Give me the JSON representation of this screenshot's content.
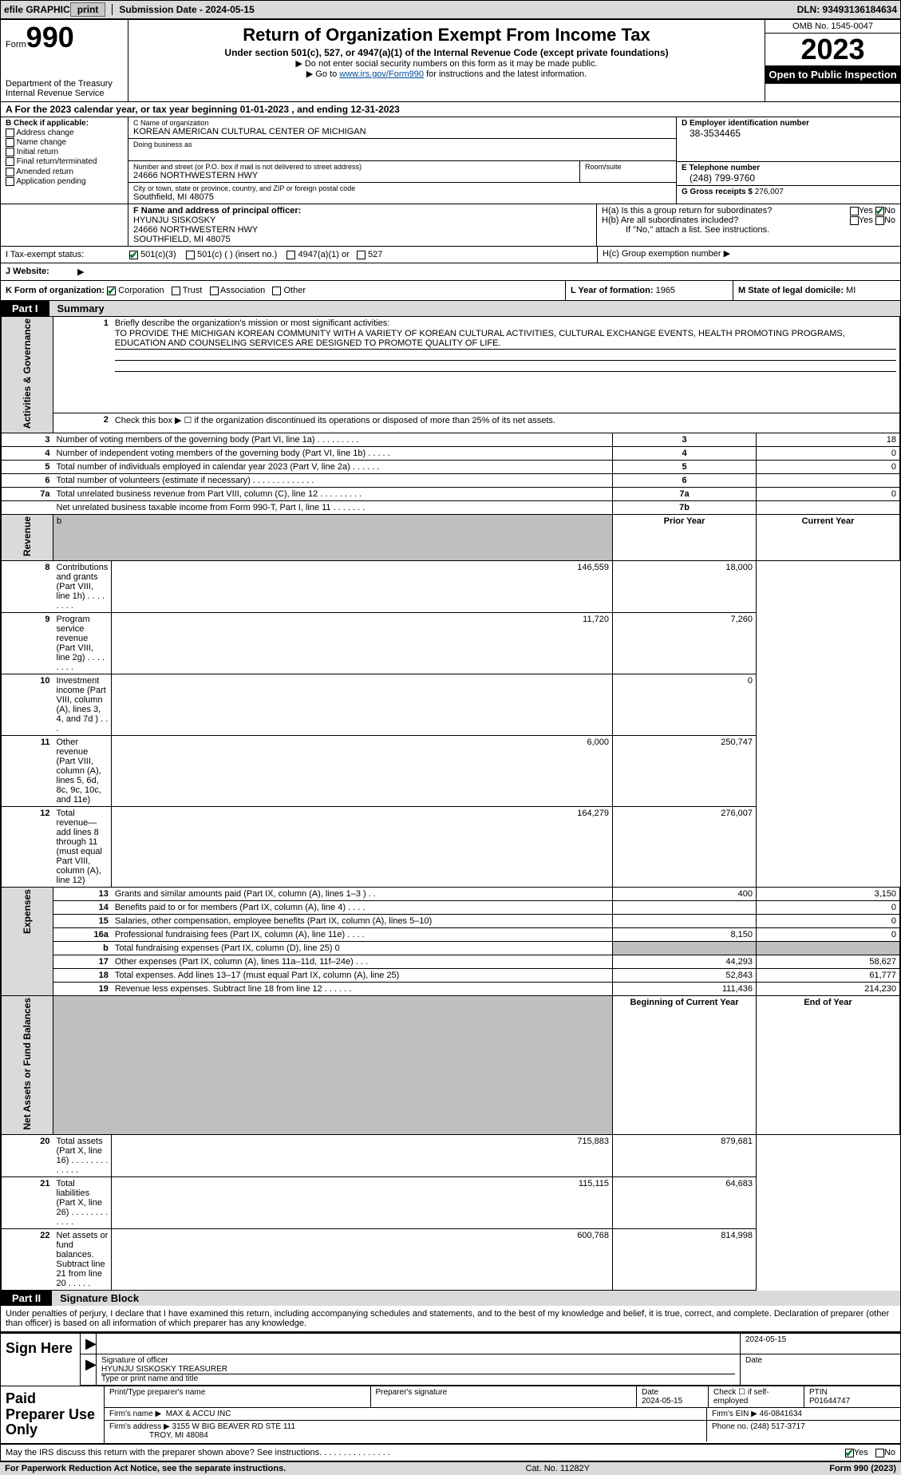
{
  "topbar": {
    "efile": "efile GRAPHIC",
    "print": "print",
    "submission": "Submission Date - 2024-05-15",
    "dln": "DLN: 93493136184634"
  },
  "header": {
    "form_prefix": "Form",
    "form_number": "990",
    "dept1": "Department of the Treasury",
    "dept2": "Internal Revenue Service",
    "title": "Return of Organization Exempt From Income Tax",
    "sub1": "Under section 501(c), 527, or 4947(a)(1) of the Internal Revenue Code (except private foundations)",
    "sub2": "Do not enter social security numbers on this form as it may be made public.",
    "sub3_pre": "Go to ",
    "sub3_link": "www.irs.gov/Form990",
    "sub3_post": " for instructions and the latest information.",
    "omb": "OMB No. 1545-0047",
    "year": "2023",
    "open": "Open to Public Inspection"
  },
  "periodA": {
    "text_pre": "A For the 2023 calendar year, or tax year beginning ",
    "begin": "01-01-2023",
    "mid": " , and ending ",
    "end": "12-31-2023"
  },
  "boxB": {
    "label": "B Check if applicable:",
    "opts": [
      "Address change",
      "Name change",
      "Initial return",
      "Final return/terminated",
      "Amended return",
      "Application pending"
    ]
  },
  "boxC": {
    "name_lbl": "C Name of organization",
    "name": "KOREAN AMERICAN CULTURAL CENTER OF MICHIGAN",
    "dba_lbl": "Doing business as",
    "dba": "",
    "street_lbl": "Number and street (or P.O. box if mail is not delivered to street address)",
    "street": "24666 NORTHWESTERN HWY",
    "room_lbl": "Room/suite",
    "room": "",
    "city_lbl": "City or town, state or province, country, and ZIP or foreign postal code",
    "city": "Southfield, MI  48075"
  },
  "boxD": {
    "ein_lbl": "D Employer identification number",
    "ein": "38-3534465",
    "tel_lbl": "E Telephone number",
    "tel": "(248) 799-9760",
    "gross_lbl": "G Gross receipts $",
    "gross": "276,007"
  },
  "boxF": {
    "lbl": "F Name and address of principal officer:",
    "name": "HYUNJU SISKOSKY",
    "street": "24666 NORTHWESTERN HWY",
    "city": "SOUTHFIELD, MI  48075"
  },
  "boxH": {
    "ha": "H(a) Is this a group return for subordinates?",
    "hb": "H(b) Are all subordinates included?",
    "hb_note": "If \"No,\" attach a list. See instructions.",
    "hc": "H(c) Group exemption number ▶",
    "yes": "Yes",
    "no": "No"
  },
  "boxI": {
    "lbl": "I     Tax-exempt status:",
    "opts": [
      "501(c)(3)",
      "501(c) (  ) (insert no.)",
      "4947(a)(1) or",
      "527"
    ]
  },
  "boxJ": {
    "lbl": "J   Website:",
    "val": "▶"
  },
  "boxK": {
    "lbl": "K Form of organization:",
    "opts": [
      "Corporation",
      "Trust",
      "Association",
      "Other"
    ]
  },
  "boxL": {
    "lbl": "L Year of formation:",
    "val": "1965"
  },
  "boxM": {
    "lbl": "M State of legal domicile:",
    "val": "MI"
  },
  "part1": {
    "tab": "Part I",
    "title": "Summary"
  },
  "vtabs": {
    "act": "Activities & Governance",
    "rev": "Revenue",
    "exp": "Expenses",
    "net": "Net Assets or Fund Balances"
  },
  "summary": {
    "line1_lbl": "Briefly describe the organization's mission or most significant activities:",
    "line1_val": "TO PROVIDE THE MICHIGAN KOREAN COMMUNITY WITH A VARIETY OF KOREAN CULTURAL ACTIVITIES, CULTURAL EXCHANGE EVENTS, HEALTH PROMOTING PROGRAMS, EDUCATION AND COUNSELING SERVICES ARE DESIGNED TO PROMOTE QUALITY OF LIFE.",
    "line2": "Check this box ▶ ☐ if the organization discontinued its operations or disposed of more than 25% of its net assets.",
    "rows_act": [
      {
        "n": "3",
        "t": "Number of voting members of the governing body (Part VI, line 1a)   .   .   .   .   .   .   .   .   .",
        "rn": "3",
        "v": "18"
      },
      {
        "n": "4",
        "t": "Number of independent voting members of the governing body (Part VI, line 1b)   .   .   .   .   .",
        "rn": "4",
        "v": "0"
      },
      {
        "n": "5",
        "t": "Total number of individuals employed in calendar year 2023 (Part V, line 2a)   .   .   .   .   .   .",
        "rn": "5",
        "v": "0"
      },
      {
        "n": "6",
        "t": "Total number of volunteers (estimate if necessary)   .   .   .   .   .   .   .   .   .   .   .   .   .",
        "rn": "6",
        "v": ""
      },
      {
        "n": "7a",
        "t": "Total unrelated business revenue from Part VIII, column (C), line 12  .   .   .   .   .   .   .   .   .",
        "rn": "7a",
        "v": "0"
      },
      {
        "n": "",
        "t": "Net unrelated business taxable income from Form 990-T, Part I, line 11   .   .   .   .   .   .   .",
        "rn": "7b",
        "v": ""
      }
    ],
    "hdr_prior": "Prior Year",
    "hdr_curr": "Current Year",
    "rows_rev": [
      {
        "n": "8",
        "t": "Contributions and grants (Part VIII, line 1h)   .   .   .   .   .   .   .   .",
        "p": "146,559",
        "c": "18,000"
      },
      {
        "n": "9",
        "t": "Program service revenue (Part VIII, line 2g)   .   .   .   .   .   .   .   .",
        "p": "11,720",
        "c": "7,260"
      },
      {
        "n": "10",
        "t": "Investment income (Part VIII, column (A), lines 3, 4, and 7d )   .   .   .",
        "p": "",
        "c": "0"
      },
      {
        "n": "11",
        "t": "Other revenue (Part VIII, column (A), lines 5, 6d, 8c, 9c, 10c, and 11e)",
        "p": "6,000",
        "c": "250,747"
      },
      {
        "n": "12",
        "t": "Total revenue—add lines 8 through 11 (must equal Part VIII, column (A), line 12)",
        "p": "164,279",
        "c": "276,007"
      }
    ],
    "rows_exp": [
      {
        "n": "13",
        "t": "Grants and similar amounts paid (Part IX, column (A), lines 1–3 )   .   .",
        "p": "400",
        "c": "3,150"
      },
      {
        "n": "14",
        "t": "Benefits paid to or for members (Part IX, column (A), line 4)  .   .   .   .",
        "p": "",
        "c": "0"
      },
      {
        "n": "15",
        "t": "Salaries, other compensation, employee benefits (Part IX, column (A), lines 5–10)",
        "p": "",
        "c": "0"
      },
      {
        "n": "16a",
        "t": "Professional fundraising fees (Part IX, column (A), line 11e)  .   .   .   .",
        "p": "8,150",
        "c": "0"
      },
      {
        "n": "b",
        "t": "Total fundraising expenses (Part IX, column (D), line 25) 0",
        "p": "__shade__",
        "c": "__shade__"
      },
      {
        "n": "17",
        "t": "Other expenses (Part IX, column (A), lines 11a–11d, 11f–24e)   .   .   .",
        "p": "44,293",
        "c": "58,627"
      },
      {
        "n": "18",
        "t": "Total expenses. Add lines 13–17 (must equal Part IX, column (A), line 25)",
        "p": "52,843",
        "c": "61,777"
      },
      {
        "n": "19",
        "t": "Revenue less expenses. Subtract line 18 from line 12  .   .   .   .   .   .",
        "p": "111,436",
        "c": "214,230"
      }
    ],
    "hdr_beg": "Beginning of Current Year",
    "hdr_end": "End of Year",
    "rows_net": [
      {
        "n": "20",
        "t": "Total assets (Part X, line 16)   .   .   .   .   .   .   .   .   .   .   .   .   .",
        "p": "715,883",
        "c": "879,681"
      },
      {
        "n": "21",
        "t": "Total liabilities (Part X, line 26)  .   .   .   .   .   .   .   .   .   .   .   .",
        "p": "115,115",
        "c": "64,683"
      },
      {
        "n": "22",
        "t": "Net assets or fund balances. Subtract line 21 from line 20  .   .   .   .   .",
        "p": "600,768",
        "c": "814,998"
      }
    ]
  },
  "part2": {
    "tab": "Part II",
    "title": "Signature Block"
  },
  "sig": {
    "penalty": "Under penalties of perjury, I declare that I have examined this return, including accompanying schedules and statements, and to the best of my knowledge and belief, it is true, correct, and complete. Declaration of preparer (other than officer) is based on all information of which preparer has any knowledge.",
    "sign_here": "Sign Here",
    "sig_officer_lbl": "Signature of officer",
    "officer_name": "HYUNJU SISKOSKY TREASURER",
    "type_lbl": "Type or print name and title",
    "date_lbl": "Date",
    "date": "2024-05-15"
  },
  "paid": {
    "label": "Paid Preparer Use Only",
    "print_lbl": "Print/Type preparer's name",
    "sig_lbl": "Preparer's signature",
    "date_lbl": "Date",
    "date": "2024-05-15",
    "check_lbl": "Check ☐ if self-employed",
    "ptin_lbl": "PTIN",
    "ptin": "P01644747",
    "firm_name_lbl": "Firm's name   ▶",
    "firm_name": "MAX & ACCU INC",
    "firm_ein_lbl": "Firm's EIN ▶",
    "firm_ein": "46-0841634",
    "firm_addr_lbl": "Firm's address ▶",
    "firm_addr1": "3155 W BIG BEAVER RD STE 111",
    "firm_addr2": "TROY, MI  48084",
    "phone_lbl": "Phone no.",
    "phone": "(248) 517-3717"
  },
  "footer": {
    "discuss": "May the IRS discuss this return with the preparer shown above? See instructions.   .   .   .   .   .   .   .   .   .   .   .   .   .   .",
    "yes": "Yes",
    "no": "No",
    "paperwork": "For Paperwork Reduction Act Notice, see the separate instructions.",
    "cat": "Cat. No. 11282Y",
    "form": "Form 990 (2023)"
  },
  "colors": {
    "bg": "#ffffff",
    "gray": "#dadada",
    "shade": "#bfbfbf",
    "black": "#000000",
    "link": "#004b9b",
    "check": "#0a7a2f"
  }
}
